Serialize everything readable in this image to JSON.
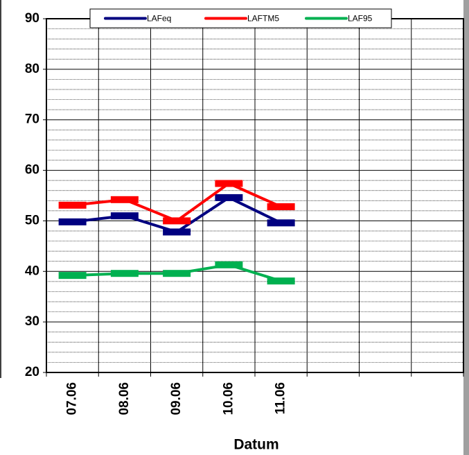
{
  "chart_data": {
    "type": "line",
    "x_label": "Datum",
    "categories": [
      "07.06",
      "08.06",
      "09.06",
      "10.06",
      "11.06",
      null,
      null,
      null
    ],
    "series": [
      {
        "name": "LAFeq",
        "color": "#000080",
        "values": [
          49.8,
          51.0,
          47.8,
          54.6,
          49.6,
          null,
          null,
          null
        ]
      },
      {
        "name": "LAFTM5",
        "color": "#ff0000",
        "values": [
          53.1,
          54.2,
          50.0,
          57.4,
          52.8,
          null,
          null,
          null
        ]
      },
      {
        "name": "LAF95",
        "color": "#00b050",
        "values": [
          39.2,
          39.6,
          39.6,
          41.3,
          38.1,
          null,
          null,
          null
        ]
      }
    ],
    "ylim": [
      20,
      90
    ],
    "yticks": [
      20,
      30,
      40,
      50,
      60,
      70,
      80,
      90
    ],
    "minor_yticks": [
      22,
      24,
      26,
      28,
      32,
      34,
      36,
      38,
      42,
      44,
      46,
      48,
      52,
      54,
      56,
      58,
      62,
      64,
      66,
      68,
      72,
      74,
      76,
      78,
      82,
      84,
      86,
      88
    ],
    "grid": true,
    "legend": "top"
  }
}
